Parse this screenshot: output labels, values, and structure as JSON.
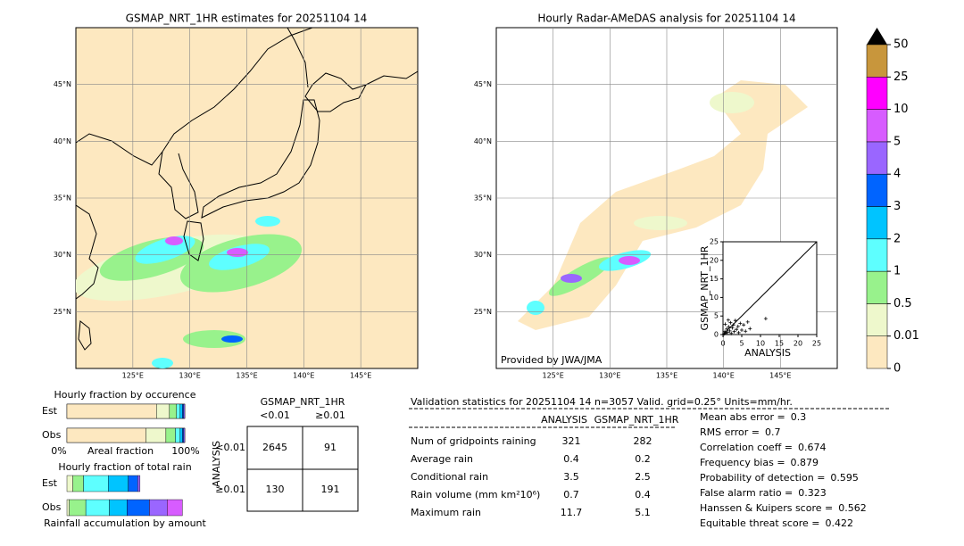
{
  "maps": [
    {
      "title": "GSMAP_NRT_1HR estimates for 20251104 14"
    },
    {
      "title": "Hourly Radar-AMeDAS analysis for 20251104 14",
      "credit": "Provided by JWA/JMA"
    }
  ],
  "map_lon_ticks": [
    {
      "value": 125,
      "label": "125°E"
    },
    {
      "value": 130,
      "label": "130°E"
    },
    {
      "value": 135,
      "label": "135°E"
    },
    {
      "value": 140,
      "label": "140°E"
    },
    {
      "value": 145,
      "label": "145°E"
    }
  ],
  "map_lat_ticks": [
    {
      "value": 25,
      "label": "25°N"
    },
    {
      "value": 30,
      "label": "30°N"
    },
    {
      "value": 35,
      "label": "35°N"
    },
    {
      "value": 40,
      "label": "40°N"
    },
    {
      "value": 45,
      "label": "45°N"
    }
  ],
  "colorbar": {
    "levels": [
      0,
      0.01,
      0.5,
      1,
      2,
      3,
      4,
      5,
      10,
      25,
      50
    ],
    "colors": [
      "#fde8c0",
      "#eef8cc",
      "#98f28c",
      "#5effff",
      "#00c4ff",
      "#0064ff",
      "#9a66ff",
      "#d75cff",
      "#ff00ff",
      "#c8963c"
    ],
    "over_color": "#000000"
  },
  "scatter": {
    "xlabel": "ANALYSIS",
    "ylabel": "GSMAP_NRT_1HR",
    "lim": [
      0,
      25
    ],
    "ticks": [
      0,
      5,
      10,
      15,
      20,
      25
    ],
    "points": [
      [
        0.3,
        0.2
      ],
      [
        0.5,
        0.8
      ],
      [
        0.8,
        0.4
      ],
      [
        1.0,
        1.5
      ],
      [
        1.2,
        0.6
      ],
      [
        1.5,
        2.1
      ],
      [
        1.8,
        1.0
      ],
      [
        2.0,
        3.2
      ],
      [
        2.2,
        0.3
      ],
      [
        2.5,
        1.8
      ],
      [
        2.8,
        2.6
      ],
      [
        3.0,
        0.8
      ],
      [
        3.3,
        3.8
      ],
      [
        3.6,
        1.4
      ],
      [
        4.0,
        2.2
      ],
      [
        4.2,
        0.5
      ],
      [
        4.6,
        3.0
      ],
      [
        5.0,
        1.2
      ],
      [
        5.5,
        2.6
      ],
      [
        6.0,
        0.9
      ],
      [
        6.6,
        3.4
      ],
      [
        7.2,
        1.6
      ],
      [
        11.4,
        4.3
      ],
      [
        0.6,
        2.8
      ],
      [
        1.4,
        3.9
      ]
    ]
  },
  "occurrence": {
    "title": "Hourly fraction by occurence",
    "x_left": "0%",
    "x_mid": "Areal fraction",
    "x_right": "100%",
    "rows": [
      {
        "label": "Est",
        "fractions": [
          76,
          11,
          6,
          3,
          2,
          1,
          1,
          0,
          0,
          0
        ]
      },
      {
        "label": "Obs",
        "fractions": [
          67,
          17,
          8,
          4,
          2,
          1,
          1,
          0,
          0,
          0
        ]
      }
    ]
  },
  "total_rain": {
    "title": "Hourly fraction of total rain",
    "xlabel": "Rainfall accumulation by amount",
    "rows": [
      {
        "label": "Est",
        "fractions": [
          0,
          5,
          9,
          21,
          17,
          8,
          2,
          0,
          0,
          0
        ]
      },
      {
        "label": "Obs",
        "fractions": [
          0,
          2,
          14,
          20,
          15,
          19,
          15,
          13,
          0,
          0
        ]
      }
    ]
  },
  "contingency": {
    "col_header": "GSMAP_NRT_1HR",
    "row_header": "ANALYSIS",
    "col_labels": [
      "<0.01",
      "≥0.01"
    ],
    "row_labels": [
      "<0.01",
      "≥0.01"
    ],
    "cells": [
      [
        2645,
        91
      ],
      [
        130,
        191
      ]
    ]
  },
  "validation": {
    "header": "Validation statistics for 20251104 14  n=3057 Valid. grid=0.25° Units=mm/hr.",
    "columns": [
      "ANALYSIS",
      "GSMAP_NRT_1HR"
    ],
    "rows": [
      {
        "label": "Num of gridpoints raining",
        "values": [
          321,
          282
        ]
      },
      {
        "label": "Average rain",
        "values": [
          0.4,
          0.2
        ]
      },
      {
        "label": "Conditional rain",
        "values": [
          3.5,
          2.5
        ]
      },
      {
        "label": "Rain volume (mm km²10⁶)",
        "values": [
          0.7,
          0.4
        ]
      },
      {
        "label": "Maximum rain",
        "values": [
          11.7,
          5.1
        ]
      }
    ],
    "scores": [
      {
        "label": "Mean abs error =",
        "value": 0.3
      },
      {
        "label": "RMS error =",
        "value": 0.7
      },
      {
        "label": "Correlation coeff =",
        "value": 0.674
      },
      {
        "label": "Frequency bias =",
        "value": 0.879
      },
      {
        "label": "Probability of detection =",
        "value": 0.595
      },
      {
        "label": "False alarm ratio =",
        "value": 0.323
      },
      {
        "label": "Hanssen & Kuipers score =",
        "value": 0.562
      },
      {
        "label": "Equitable threat score =",
        "value": 0.422
      }
    ]
  }
}
